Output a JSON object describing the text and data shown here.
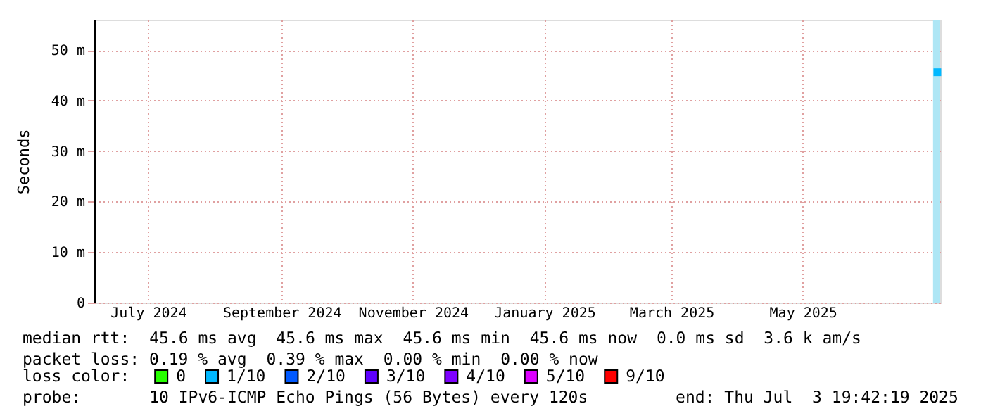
{
  "chart_data": {
    "type": "scatter",
    "ylabel": "Seconds",
    "x": [
      "2025-07-02T12:00"
    ],
    "series": [
      {
        "name": "0",
        "color": "#26ff00",
        "values": [
          null
        ]
      },
      {
        "name": "1/10",
        "color": "#00b8ff",
        "values": [
          45.6
        ]
      },
      {
        "name": "2/10",
        "color": "#0059ff",
        "values": [
          null
        ]
      },
      {
        "name": "3/10",
        "color": "#5e00ff",
        "values": [
          null
        ]
      },
      {
        "name": "4/10",
        "color": "#7e00ff",
        "values": [
          null
        ]
      },
      {
        "name": "5/10",
        "color": "#dd00ff",
        "values": [
          null
        ]
      },
      {
        "name": "9/10",
        "color": "#ff0000",
        "values": [
          null
        ]
      }
    ],
    "legend_title": "loss color:",
    "legend": "bottom",
    "marker": "square",
    "bands": [
      {
        "axis": "x",
        "from": "2025-06-30T12:00",
        "to": "2025-07-03T19:42",
        "color": "#aee6f5"
      }
    ],
    "xlim": [
      "2024-06-06",
      "2025-07-03T19:42"
    ],
    "xticks": [
      {
        "value": "2024-07-01",
        "label": "July 2024"
      },
      {
        "value": "2024-09-01",
        "label": "September 2024"
      },
      {
        "value": "2024-11-01",
        "label": "November 2024"
      },
      {
        "value": "2025-01-01",
        "label": "January 2025"
      },
      {
        "value": "2025-03-01",
        "label": "March 2025"
      },
      {
        "value": "2025-05-01",
        "label": "May 2025"
      }
    ],
    "ylim": [
      0,
      56
    ],
    "yticks": [
      0,
      {
        "value": 10,
        "label": "10 m"
      },
      {
        "value": 20,
        "label": "20 m"
      },
      {
        "value": 30,
        "label": "30 m"
      },
      {
        "value": 40,
        "label": "40 m"
      },
      {
        "value": 50,
        "label": "50 m"
      }
    ],
    "grid": true,
    "annotations": [
      "median rtt:  45.6 ms avg  45.6 ms max  45.6 ms min  45.6 ms now  0.0 ms sd  3.6 k am/s",
      "packet loss: 0.19 % avg  0.39 % max  0.00 % min  0.00 % now",
      "probe:       10 IPv6-ICMP Echo Pings (56 Bytes) every 120s",
      "end: Thu Jul  3 19:42:19 2025"
    ]
  }
}
